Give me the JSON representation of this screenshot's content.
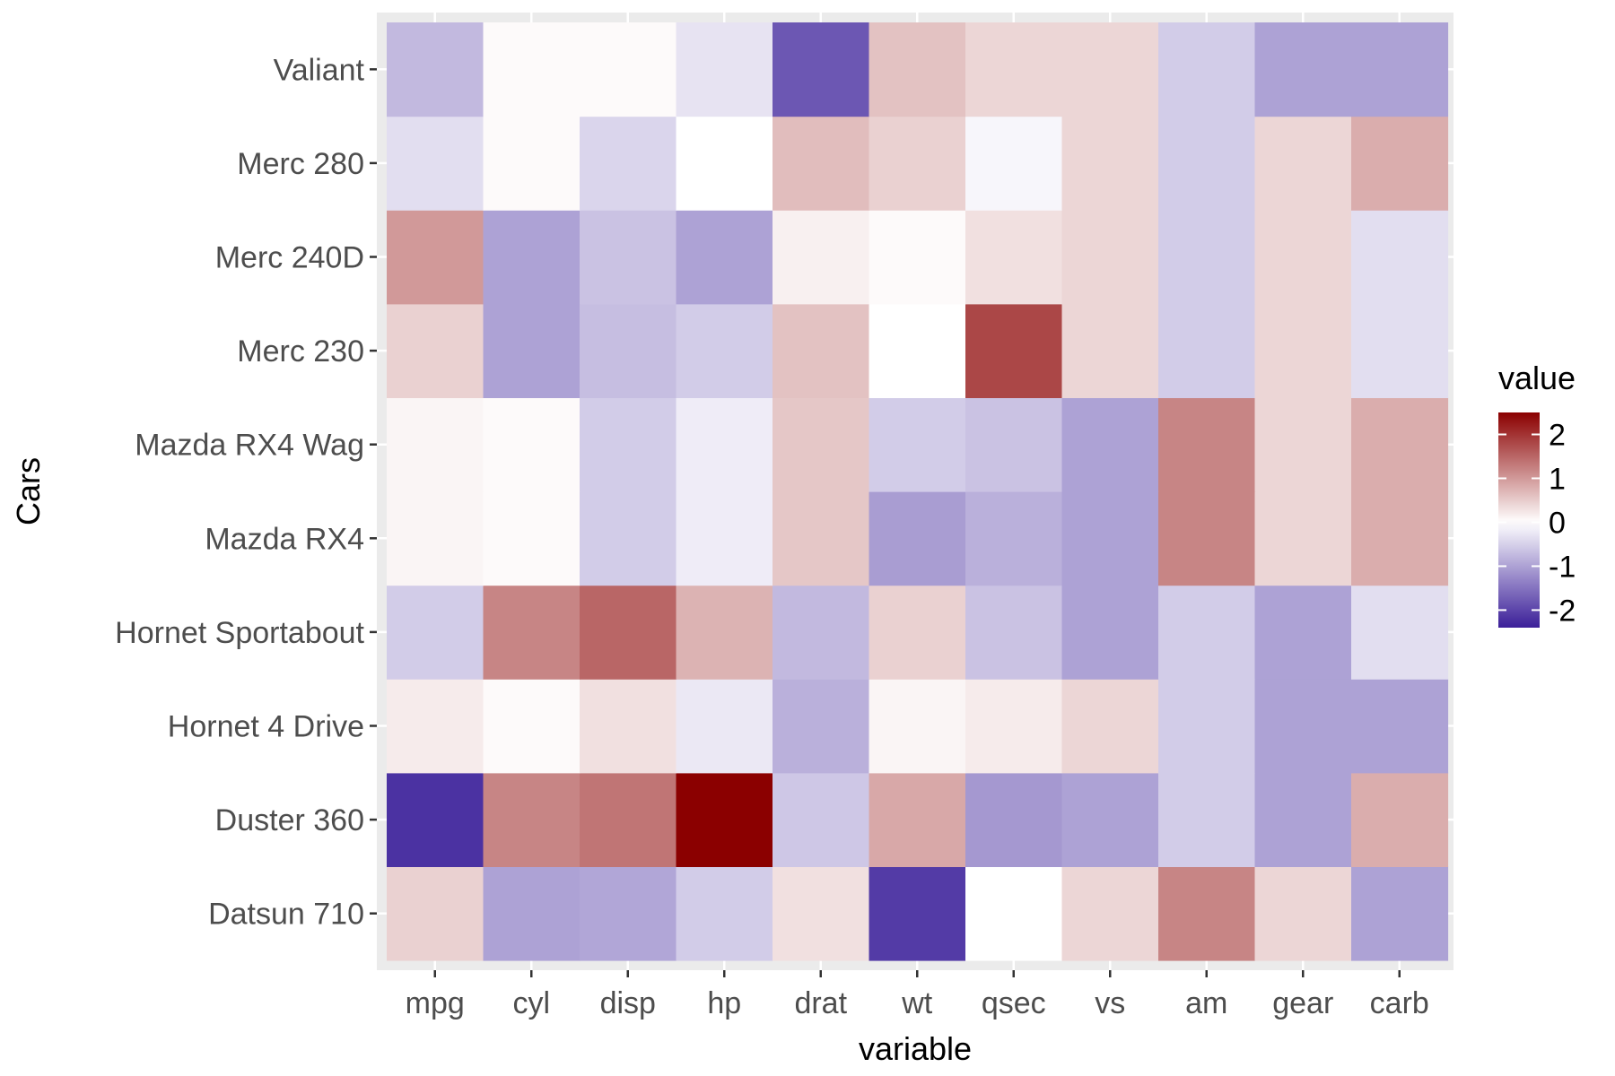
{
  "chart_data": {
    "type": "heatmap",
    "xlabel": "variable",
    "ylabel": "Cars",
    "x_categories": [
      "mpg",
      "cyl",
      "disp",
      "hp",
      "drat",
      "wt",
      "qsec",
      "vs",
      "am",
      "gear",
      "carb"
    ],
    "y_categories": [
      "Datsun 710",
      "Duster 360",
      "Hornet 4 Drive",
      "Hornet Sportabout",
      "Mazda RX4",
      "Mazda RX4 Wag",
      "Merc 230",
      "Merc 240D",
      "Merc 280",
      "Valiant"
    ],
    "values": [
      [
        0.45,
        -1.0,
        -0.95,
        -0.55,
        0.3,
        -2.1,
        0.0,
        0.4,
        1.2,
        0.4,
        -1.0
      ],
      [
        -2.2,
        1.2,
        1.35,
        2.5,
        -0.6,
        0.85,
        -1.1,
        -1.0,
        -0.55,
        -1.0,
        0.8
      ],
      [
        0.2,
        0.05,
        0.3,
        -0.25,
        -0.85,
        0.1,
        0.2,
        0.4,
        -0.55,
        -1.0,
        -1.0
      ],
      [
        -0.55,
        1.2,
        1.5,
        0.75,
        -0.75,
        0.45,
        -0.65,
        -1.0,
        -0.55,
        -1.0,
        -0.35
      ],
      [
        0.1,
        0.05,
        -0.55,
        -0.2,
        0.55,
        -1.05,
        -0.85,
        -1.0,
        1.2,
        0.4,
        0.8
      ],
      [
        0.1,
        0.05,
        -0.55,
        -0.2,
        0.55,
        -0.55,
        -0.65,
        -1.0,
        1.2,
        0.4,
        0.8
      ],
      [
        0.45,
        -1.0,
        -0.7,
        -0.55,
        0.6,
        0.0,
        1.8,
        0.4,
        -0.55,
        0.4,
        -0.35
      ],
      [
        1.0,
        -1.0,
        -0.65,
        -1.0,
        0.15,
        0.05,
        0.3,
        0.4,
        -0.55,
        0.4,
        -0.35
      ],
      [
        -0.35,
        0.05,
        -0.45,
        0.0,
        0.65,
        0.45,
        -0.1,
        0.4,
        -0.55,
        0.4,
        0.8
      ],
      [
        -0.75,
        0.05,
        0.05,
        -0.3,
        -1.8,
        0.6,
        0.4,
        0.4,
        -0.55,
        -1.0,
        -1.0
      ]
    ],
    "legend": {
      "title": "value",
      "ticks": [
        2,
        1,
        0,
        -1,
        -2
      ],
      "tick_labels": [
        "2",
        "1",
        "0",
        "-1",
        "-2"
      ],
      "range": [
        -2.4,
        2.5
      ],
      "low_color": "#3b1f99",
      "mid_color": "#ffffff",
      "high_color": "#8b0000",
      "placement": "right"
    },
    "grid": true,
    "panel_background": "#ebebeb",
    "gridline_color": "#ffffff"
  }
}
